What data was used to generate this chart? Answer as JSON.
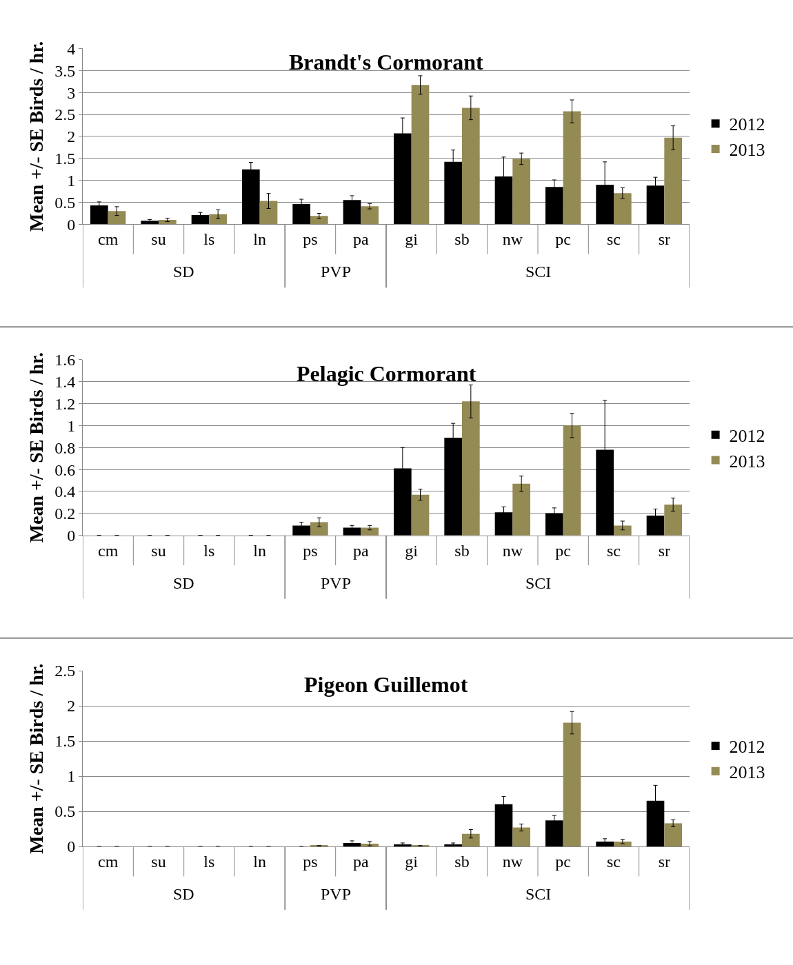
{
  "chart_data": [
    {
      "type": "bar",
      "title": "Brandt's Cormorant",
      "ylabel": "Mean +/- SE Birds / hr.",
      "categories": [
        "cm",
        "su",
        "ls",
        "ln",
        "ps",
        "pa",
        "gi",
        "sb",
        "nw",
        "pc",
        "sc",
        "sr"
      ],
      "series": [
        {
          "name": "2012",
          "color": "#000000",
          "values": [
            0.43,
            0.08,
            0.21,
            1.25,
            0.46,
            0.55,
            2.07,
            1.42,
            1.09,
            0.85,
            0.9,
            0.88
          ],
          "errors": [
            0.08,
            0.03,
            0.06,
            0.16,
            0.11,
            0.1,
            0.35,
            0.27,
            0.44,
            0.16,
            0.52,
            0.19
          ]
        },
        {
          "name": "2013",
          "color": "#948a54",
          "values": [
            0.3,
            0.1,
            0.23,
            0.53,
            0.19,
            0.41,
            3.17,
            2.65,
            1.49,
            2.57,
            0.71,
            1.97
          ],
          "errors": [
            0.1,
            0.04,
            0.1,
            0.17,
            0.06,
            0.06,
            0.21,
            0.27,
            0.13,
            0.26,
            0.12,
            0.27
          ]
        }
      ],
      "ylim": [
        0,
        4
      ],
      "yticks": [
        0,
        0.5,
        1,
        1.5,
        2,
        2.5,
        3,
        3.5,
        4
      ],
      "grid": "y",
      "legend": "right",
      "annotations": [
        "SD",
        "PVP",
        "SCI"
      ]
    },
    {
      "type": "bar",
      "title": "Pelagic Cormorant",
      "ylabel": "Mean +/- SE Birds / hr.",
      "categories": [
        "cm",
        "su",
        "ls",
        "ln",
        "ps",
        "pa",
        "gi",
        "sb",
        "nw",
        "pc",
        "sc",
        "sr"
      ],
      "series": [
        {
          "name": "2012",
          "color": "#000000",
          "values": [
            0,
            0,
            0,
            0,
            0.09,
            0.07,
            0.61,
            0.89,
            0.21,
            0.2,
            0.78,
            0.18
          ],
          "errors": [
            null,
            null,
            null,
            null,
            0.03,
            0.02,
            0.19,
            0.13,
            0.05,
            0.05,
            0.45,
            0.06
          ]
        },
        {
          "name": "2013",
          "color": "#948a54",
          "values": [
            0,
            0,
            0,
            0,
            0.12,
            0.07,
            0.37,
            1.22,
            0.47,
            1.0,
            0.09,
            0.28
          ],
          "errors": [
            null,
            null,
            null,
            null,
            0.04,
            0.02,
            0.05,
            0.15,
            0.07,
            0.11,
            0.04,
            0.06
          ]
        }
      ],
      "ylim": [
        0,
        1.6
      ],
      "yticks": [
        0,
        0.2,
        0.4,
        0.6,
        0.8,
        1,
        1.2,
        1.4,
        1.6
      ],
      "grid": "y",
      "legend": "right",
      "annotations": [
        "SD",
        "PVP",
        "SCI"
      ]
    },
    {
      "type": "bar",
      "title": "Pigeon Guillemot",
      "ylabel": "Mean +/- SE Birds / hr.",
      "categories": [
        "cm",
        "su",
        "ls",
        "ln",
        "ps",
        "pa",
        "gi",
        "sb",
        "nw",
        "pc",
        "sc",
        "sr"
      ],
      "series": [
        {
          "name": "2012",
          "color": "#000000",
          "values": [
            0,
            0,
            0,
            0,
            0,
            0.05,
            0.03,
            0.03,
            0.6,
            0.37,
            0.07,
            0.65
          ],
          "errors": [
            null,
            null,
            null,
            null,
            null,
            0.03,
            0.02,
            0.02,
            0.11,
            0.07,
            0.04,
            0.22
          ]
        },
        {
          "name": "2013",
          "color": "#948a54",
          "values": [
            0,
            0,
            0,
            0,
            0.01,
            0.04,
            0.01,
            0.18,
            0.27,
            1.76,
            0.07,
            0.33
          ],
          "errors": [
            null,
            null,
            null,
            null,
            null,
            0.03,
            null,
            0.06,
            0.05,
            0.16,
            0.03,
            0.05
          ]
        }
      ],
      "ylim": [
        0,
        2.5
      ],
      "yticks": [
        0,
        0.5,
        1,
        1.5,
        2,
        2.5
      ],
      "grid": "y",
      "legend": "right",
      "annotations": [
        "SD",
        "PVP",
        "SCI"
      ]
    }
  ]
}
